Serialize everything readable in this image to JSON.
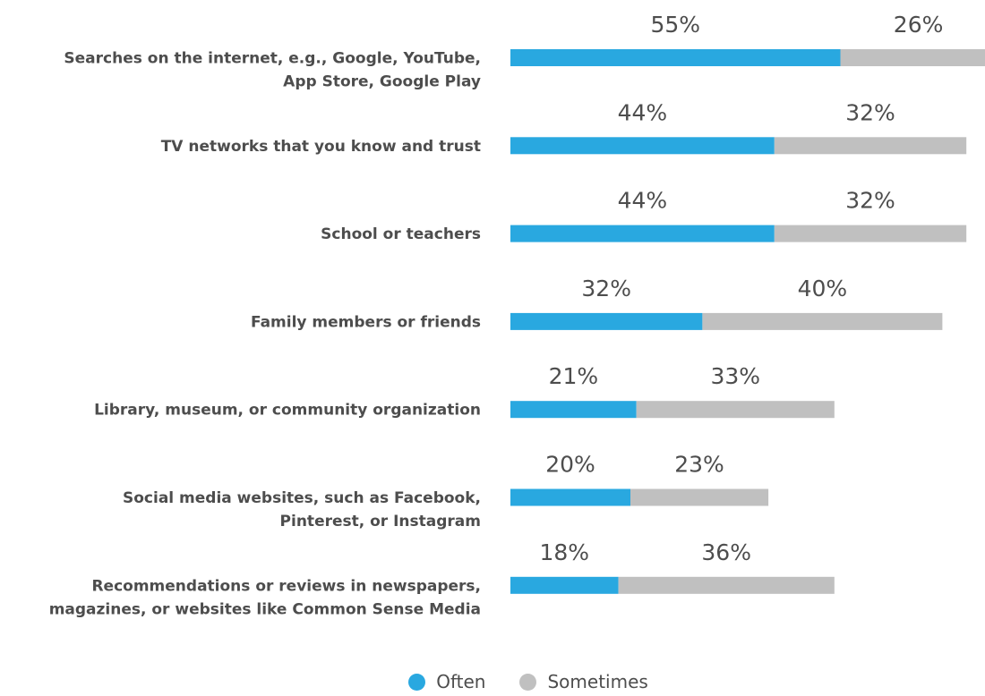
{
  "chart_data": {
    "type": "bar",
    "orientation": "horizontal",
    "stacked": true,
    "categories": [
      [
        "Searches on the internet, e.g., Google, YouTube,",
        "App Store, Google Play"
      ],
      [
        "TV networks that you know and trust"
      ],
      [
        "School or teachers"
      ],
      [
        "Family members or friends"
      ],
      [
        "Library, museum, or community organization"
      ],
      [
        "Social media websites, such as Facebook,",
        "Pinterest, or Instagram"
      ],
      [
        "Recommendations or reviews in newspapers,",
        "magazines, or websites like Common Sense Media"
      ]
    ],
    "series": [
      {
        "name": "Often",
        "color": "#29a8e0",
        "values": [
          55,
          44,
          44,
          32,
          21,
          20,
          18
        ],
        "labels": [
          "55%",
          "44%",
          "44%",
          "32%",
          "21%",
          "20%",
          "18%"
        ]
      },
      {
        "name": "Sometimes",
        "color": "#c0c0c0",
        "values": [
          26,
          32,
          32,
          40,
          33,
          23,
          36
        ],
        "labels": [
          "26%",
          "32%",
          "32%",
          "40%",
          "33%",
          "23%",
          "36%"
        ]
      }
    ],
    "legend_position": "bottom-center",
    "grid": false,
    "xlim": [
      0,
      81
    ]
  },
  "legend": {
    "often_label": "Often",
    "sometimes_label": "Sometimes"
  }
}
